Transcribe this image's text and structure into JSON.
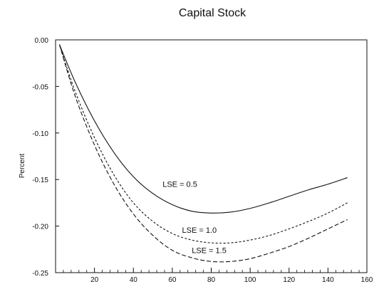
{
  "chart_data": {
    "type": "line",
    "title": "Capital Stock",
    "xlabel": "",
    "ylabel": "Percent",
    "xlim": [
      0,
      160
    ],
    "ylim": [
      -0.25,
      0.0
    ],
    "x_ticks": [
      20,
      40,
      60,
      80,
      100,
      120,
      140,
      160
    ],
    "x_tick_labels": [
      "20",
      "40",
      "60",
      "80",
      "100",
      "120",
      "140",
      "160"
    ],
    "y_ticks": [
      0.0,
      -0.05,
      -0.1,
      -0.15,
      -0.2,
      -0.25
    ],
    "y_tick_labels": [
      "0.00",
      "-0.05",
      "-0.10",
      "-0.15",
      "-0.20",
      "-0.25"
    ],
    "grid": false,
    "legend": "none",
    "x": [
      2,
      10,
      20,
      30,
      40,
      50,
      60,
      70,
      80,
      90,
      100,
      110,
      120,
      130,
      140,
      150
    ],
    "series": [
      {
        "label": "LSE = 0.5",
        "dash": "solid",
        "values": [
          -0.005,
          -0.045,
          -0.087,
          -0.121,
          -0.147,
          -0.165,
          -0.177,
          -0.184,
          -0.186,
          -0.185,
          -0.181,
          -0.175,
          -0.168,
          -0.161,
          -0.155,
          -0.148
        ]
      },
      {
        "label": "LSE = 1.0",
        "dash": "short",
        "values": [
          -0.005,
          -0.055,
          -0.105,
          -0.145,
          -0.175,
          -0.195,
          -0.208,
          -0.215,
          -0.218,
          -0.218,
          -0.215,
          -0.21,
          -0.203,
          -0.195,
          -0.186,
          -0.175
        ]
      },
      {
        "label": "LSE = 1.5",
        "dash": "long",
        "values": [
          -0.005,
          -0.06,
          -0.113,
          -0.155,
          -0.187,
          -0.21,
          -0.226,
          -0.234,
          -0.238,
          -0.238,
          -0.235,
          -0.229,
          -0.222,
          -0.213,
          -0.203,
          -0.193
        ]
      }
    ],
    "annotations": [
      {
        "text": "LSE = 0.5",
        "x": 55,
        "y": -0.155
      },
      {
        "text": "LSE = 1.0",
        "x": 65,
        "y": -0.204
      },
      {
        "text": "LSE = 1.5",
        "x": 70,
        "y": -0.226
      }
    ]
  }
}
